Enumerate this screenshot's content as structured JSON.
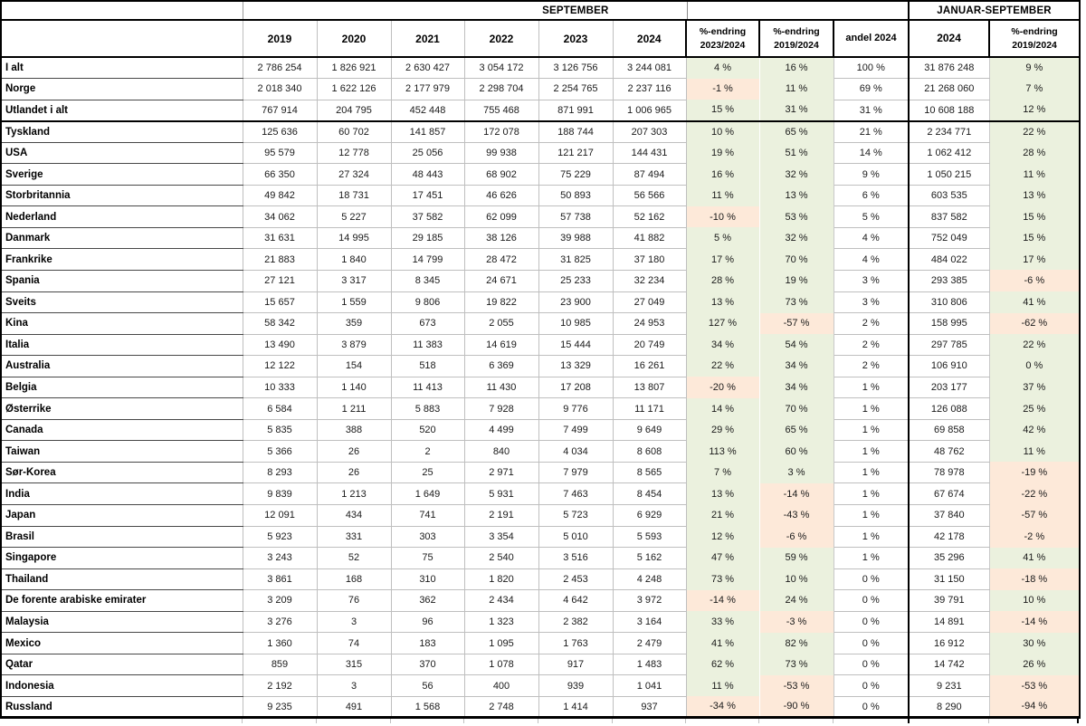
{
  "table": {
    "header": {
      "september": "SEPTEMBER",
      "januar_september": "JANUAR-SEPTEMBER",
      "years": [
        "2019",
        "2020",
        "2021",
        "2022",
        "2023",
        "2024"
      ],
      "pct_change_2023_2024": "%-endring\n2023/2024",
      "pct_change_2019_2024": "%-endring\n2019/2024",
      "andel_2024": "andel 2024",
      "jan_sep_2024": "2024",
      "jan_sep_pct_change": "%-endring\n2019/2024"
    },
    "colors": {
      "positive_bg": "#EBF1DE",
      "negative_bg": "#FDE9D9"
    },
    "rows": [
      {
        "label": "I alt",
        "sep": [
          "2 786 254",
          "1 826 921",
          "2 630 427",
          "3 054 172",
          "3 126 756",
          "3 244 081"
        ],
        "pct_2023_2024": "4 %",
        "pct_2019_2024": "16 %",
        "andel_2024": "100 %",
        "jan_sep_2024": "31 876 248",
        "jan_sep_pct": "9 %"
      },
      {
        "label": "Norge",
        "sep": [
          "2 018 340",
          "1 622 126",
          "2 177 979",
          "2 298 704",
          "2 254 765",
          "2 237 116"
        ],
        "pct_2023_2024": "-1 %",
        "pct_2019_2024": "11 %",
        "andel_2024": "69 %",
        "jan_sep_2024": "21 268 060",
        "jan_sep_pct": "7 %"
      },
      {
        "label": "Utlandet i alt",
        "sep": [
          "767 914",
          "204 795",
          "452 448",
          "755 468",
          "871 991",
          "1 006 965"
        ],
        "pct_2023_2024": "15 %",
        "pct_2019_2024": "31 %",
        "andel_2024": "31 %",
        "jan_sep_2024": "10 608 188",
        "jan_sep_pct": "12 %"
      },
      {
        "label": "Tyskland",
        "sep": [
          "125 636",
          "60 702",
          "141 857",
          "172 078",
          "188 744",
          "207 303"
        ],
        "pct_2023_2024": "10 %",
        "pct_2019_2024": "65 %",
        "andel_2024": "21 %",
        "jan_sep_2024": "2 234 771",
        "jan_sep_pct": "22 %"
      },
      {
        "label": "USA",
        "sep": [
          "95 579",
          "12 778",
          "25 056",
          "99 938",
          "121 217",
          "144 431"
        ],
        "pct_2023_2024": "19 %",
        "pct_2019_2024": "51 %",
        "andel_2024": "14 %",
        "jan_sep_2024": "1 062 412",
        "jan_sep_pct": "28 %"
      },
      {
        "label": "Sverige",
        "sep": [
          "66 350",
          "27 324",
          "48 443",
          "68 902",
          "75 229",
          "87 494"
        ],
        "pct_2023_2024": "16 %",
        "pct_2019_2024": "32 %",
        "andel_2024": "9 %",
        "jan_sep_2024": "1 050 215",
        "jan_sep_pct": "11 %"
      },
      {
        "label": "Storbritannia",
        "sep": [
          "49 842",
          "18 731",
          "17 451",
          "46 626",
          "50 893",
          "56 566"
        ],
        "pct_2023_2024": "11 %",
        "pct_2019_2024": "13 %",
        "andel_2024": "6 %",
        "jan_sep_2024": "603 535",
        "jan_sep_pct": "13 %"
      },
      {
        "label": "Nederland",
        "sep": [
          "34 062",
          "5 227",
          "37 582",
          "62 099",
          "57 738",
          "52 162"
        ],
        "pct_2023_2024": "-10 %",
        "pct_2019_2024": "53 %",
        "andel_2024": "5 %",
        "jan_sep_2024": "837 582",
        "jan_sep_pct": "15 %"
      },
      {
        "label": "Danmark",
        "sep": [
          "31 631",
          "14 995",
          "29 185",
          "38 126",
          "39 988",
          "41 882"
        ],
        "pct_2023_2024": "5 %",
        "pct_2019_2024": "32 %",
        "andel_2024": "4 %",
        "jan_sep_2024": "752 049",
        "jan_sep_pct": "15 %"
      },
      {
        "label": "Frankrike",
        "sep": [
          "21 883",
          "1 840",
          "14 799",
          "28 472",
          "31 825",
          "37 180"
        ],
        "pct_2023_2024": "17 %",
        "pct_2019_2024": "70 %",
        "andel_2024": "4 %",
        "jan_sep_2024": "484 022",
        "jan_sep_pct": "17 %"
      },
      {
        "label": "Spania",
        "sep": [
          "27 121",
          "3 317",
          "8 345",
          "24 671",
          "25 233",
          "32 234"
        ],
        "pct_2023_2024": "28 %",
        "pct_2019_2024": "19 %",
        "andel_2024": "3 %",
        "jan_sep_2024": "293 385",
        "jan_sep_pct": "-6 %"
      },
      {
        "label": "Sveits",
        "sep": [
          "15 657",
          "1 559",
          "9 806",
          "19 822",
          "23 900",
          "27 049"
        ],
        "pct_2023_2024": "13 %",
        "pct_2019_2024": "73 %",
        "andel_2024": "3 %",
        "jan_sep_2024": "310 806",
        "jan_sep_pct": "41 %"
      },
      {
        "label": "Kina",
        "sep": [
          "58 342",
          "359",
          "673",
          "2 055",
          "10 985",
          "24 953"
        ],
        "pct_2023_2024": "127 %",
        "pct_2019_2024": "-57 %",
        "andel_2024": "2 %",
        "jan_sep_2024": "158 995",
        "jan_sep_pct": "-62 %"
      },
      {
        "label": "Italia",
        "sep": [
          "13 490",
          "3 879",
          "11 383",
          "14 619",
          "15 444",
          "20 749"
        ],
        "pct_2023_2024": "34 %",
        "pct_2019_2024": "54 %",
        "andel_2024": "2 %",
        "jan_sep_2024": "297 785",
        "jan_sep_pct": "22 %"
      },
      {
        "label": "Australia",
        "sep": [
          "12 122",
          "154",
          "518",
          "6 369",
          "13 329",
          "16 261"
        ],
        "pct_2023_2024": "22 %",
        "pct_2019_2024": "34 %",
        "andel_2024": "2 %",
        "jan_sep_2024": "106 910",
        "jan_sep_pct": "0 %"
      },
      {
        "label": "Belgia",
        "sep": [
          "10 333",
          "1 140",
          "11 413",
          "11 430",
          "17 208",
          "13 807"
        ],
        "pct_2023_2024": "-20 %",
        "pct_2019_2024": "34 %",
        "andel_2024": "1 %",
        "jan_sep_2024": "203 177",
        "jan_sep_pct": "37 %"
      },
      {
        "label": "Østerrike",
        "sep": [
          "6 584",
          "1 211",
          "5 883",
          "7 928",
          "9 776",
          "11 171"
        ],
        "pct_2023_2024": "14 %",
        "pct_2019_2024": "70 %",
        "andel_2024": "1 %",
        "jan_sep_2024": "126 088",
        "jan_sep_pct": "25 %"
      },
      {
        "label": "Canada",
        "sep": [
          "5 835",
          "388",
          "520",
          "4 499",
          "7 499",
          "9 649"
        ],
        "pct_2023_2024": "29 %",
        "pct_2019_2024": "65 %",
        "andel_2024": "1 %",
        "jan_sep_2024": "69 858",
        "jan_sep_pct": "42 %"
      },
      {
        "label": "Taiwan",
        "sep": [
          "5 366",
          "26",
          "2",
          "840",
          "4 034",
          "8 608"
        ],
        "pct_2023_2024": "113 %",
        "pct_2019_2024": "60 %",
        "andel_2024": "1 %",
        "jan_sep_2024": "48 762",
        "jan_sep_pct": "11 %"
      },
      {
        "label": "Sør-Korea",
        "sep": [
          "8 293",
          "26",
          "25",
          "2 971",
          "7 979",
          "8 565"
        ],
        "pct_2023_2024": "7 %",
        "pct_2019_2024": "3 %",
        "andel_2024": "1 %",
        "jan_sep_2024": "78 978",
        "jan_sep_pct": "-19 %"
      },
      {
        "label": "India",
        "sep": [
          "9 839",
          "1 213",
          "1 649",
          "5 931",
          "7 463",
          "8 454"
        ],
        "pct_2023_2024": "13 %",
        "pct_2019_2024": "-14 %",
        "andel_2024": "1 %",
        "jan_sep_2024": "67 674",
        "jan_sep_pct": "-22 %"
      },
      {
        "label": "Japan",
        "sep": [
          "12 091",
          "434",
          "741",
          "2 191",
          "5 723",
          "6 929"
        ],
        "pct_2023_2024": "21 %",
        "pct_2019_2024": "-43 %",
        "andel_2024": "1 %",
        "jan_sep_2024": "37 840",
        "jan_sep_pct": "-57 %"
      },
      {
        "label": "Brasil",
        "sep": [
          "5 923",
          "331",
          "303",
          "3 354",
          "5 010",
          "5 593"
        ],
        "pct_2023_2024": "12 %",
        "pct_2019_2024": "-6 %",
        "andel_2024": "1 %",
        "jan_sep_2024": "42 178",
        "jan_sep_pct": "-2 %"
      },
      {
        "label": "Singapore",
        "sep": [
          "3 243",
          "52",
          "75",
          "2 540",
          "3 516",
          "5 162"
        ],
        "pct_2023_2024": "47 %",
        "pct_2019_2024": "59 %",
        "andel_2024": "1 %",
        "jan_sep_2024": "35 296",
        "jan_sep_pct": "41 %"
      },
      {
        "label": "Thailand",
        "sep": [
          "3 861",
          "168",
          "310",
          "1 820",
          "2 453",
          "4 248"
        ],
        "pct_2023_2024": "73 %",
        "pct_2019_2024": "10 %",
        "andel_2024": "0 %",
        "jan_sep_2024": "31 150",
        "jan_sep_pct": "-18 %"
      },
      {
        "label": "De forente arabiske emirater",
        "sep": [
          "3 209",
          "76",
          "362",
          "2 434",
          "4 642",
          "3 972"
        ],
        "pct_2023_2024": "-14 %",
        "pct_2019_2024": "24 %",
        "andel_2024": "0 %",
        "jan_sep_2024": "39 791",
        "jan_sep_pct": "10 %"
      },
      {
        "label": "Malaysia",
        "sep": [
          "3 276",
          "3",
          "96",
          "1 323",
          "2 382",
          "3 164"
        ],
        "pct_2023_2024": "33 %",
        "pct_2019_2024": "-3 %",
        "andel_2024": "0 %",
        "jan_sep_2024": "14 891",
        "jan_sep_pct": "-14 %"
      },
      {
        "label": "Mexico",
        "sep": [
          "1 360",
          "74",
          "183",
          "1 095",
          "1 763",
          "2 479"
        ],
        "pct_2023_2024": "41 %",
        "pct_2019_2024": "82 %",
        "andel_2024": "0 %",
        "jan_sep_2024": "16 912",
        "jan_sep_pct": "30 %"
      },
      {
        "label": "Qatar",
        "sep": [
          "859",
          "315",
          "370",
          "1 078",
          "917",
          "1 483"
        ],
        "pct_2023_2024": "62 %",
        "pct_2019_2024": "73 %",
        "andel_2024": "0 %",
        "jan_sep_2024": "14 742",
        "jan_sep_pct": "26 %"
      },
      {
        "label": "Indonesia",
        "sep": [
          "2 192",
          "3",
          "56",
          "400",
          "939",
          "1 041"
        ],
        "pct_2023_2024": "11 %",
        "pct_2019_2024": "-53 %",
        "andel_2024": "0 %",
        "jan_sep_2024": "9 231",
        "jan_sep_pct": "-53 %"
      },
      {
        "label": "Russland",
        "sep": [
          "9 235",
          "491",
          "1 568",
          "2 748",
          "1 414",
          "937"
        ],
        "pct_2023_2024": "-34 %",
        "pct_2019_2024": "-90 %",
        "andel_2024": "0 %",
        "jan_sep_2024": "8 290",
        "jan_sep_pct": "-94 %"
      }
    ]
  }
}
